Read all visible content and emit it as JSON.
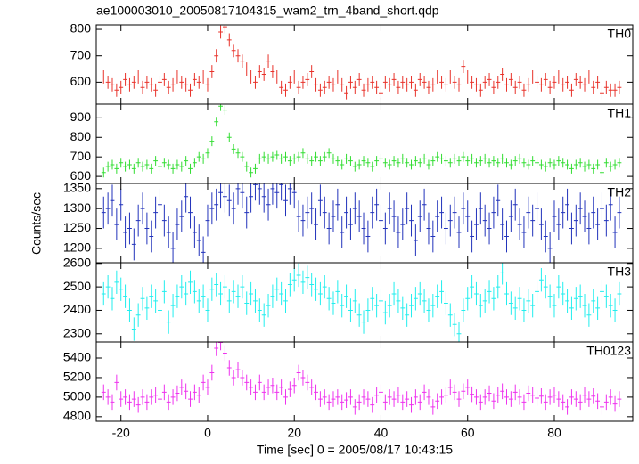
{
  "chart_data": {
    "type": "step",
    "title": "ae100003010_20050817104315_wam2_trn_4band_short.qdp",
    "xlabel": "Time [sec] 0 = 2005/08/17 10:43:15",
    "ylabel": "Counts/sec",
    "xlim": [
      -25.7,
      98.1
    ],
    "xticks": [
      -20,
      0,
      20,
      40,
      60,
      80
    ],
    "x": [
      -24,
      -23,
      -22,
      -21,
      -20,
      -19,
      -18,
      -17,
      -16,
      -15,
      -14,
      -13,
      -12,
      -11,
      -10,
      -9,
      -8,
      -7,
      -6,
      -5,
      -4,
      -3,
      -2,
      -1,
      0,
      1,
      2,
      3,
      4,
      5,
      6,
      7,
      8,
      9,
      10,
      11,
      12,
      13,
      14,
      15,
      16,
      17,
      18,
      19,
      20,
      21,
      22,
      23,
      24,
      25,
      26,
      27,
      28,
      29,
      30,
      31,
      32,
      33,
      34,
      35,
      36,
      37,
      38,
      39,
      40,
      41,
      42,
      43,
      44,
      45,
      46,
      47,
      48,
      49,
      50,
      51,
      52,
      53,
      54,
      55,
      56,
      57,
      58,
      59,
      60,
      61,
      62,
      63,
      64,
      65,
      66,
      67,
      68,
      69,
      70,
      71,
      72,
      73,
      74,
      75,
      76,
      77,
      78,
      79,
      80,
      81,
      82,
      83,
      84,
      85,
      86,
      87,
      88,
      89,
      90,
      91,
      92,
      93,
      94,
      95
    ],
    "series": [
      {
        "name": "TH0",
        "color": "#e8332b",
        "ylim": [
          517,
          817
        ],
        "yticks": [
          600,
          700,
          800
        ],
        "error": 25,
        "values": [
          620,
          600,
          590,
          570,
          580,
          610,
          590,
          600,
          620,
          580,
          600,
          590,
          570,
          600,
          610,
          580,
          590,
          620,
          600,
          590,
          570,
          610,
          600,
          620,
          590,
          640,
          700,
          790,
          810,
          760,
          720,
          700,
          680,
          650,
          620,
          600,
          640,
          630,
          680,
          640,
          620,
          580,
          570,
          600,
          620,
          580,
          600,
          610,
          640,
          590,
          570,
          580,
          600,
          590,
          620,
          590,
          560,
          600,
          580,
          610,
          570,
          590,
          600,
          580,
          560,
          600,
          590,
          610,
          580,
          600,
          590,
          600,
          570,
          610,
          600,
          580,
          590,
          620,
          600,
          590,
          620,
          600,
          590,
          660,
          620,
          600,
          590,
          570,
          600,
          610,
          580,
          600,
          630,
          590,
          610,
          580,
          600,
          570,
          590,
          620,
          600,
          590,
          610,
          580,
          600,
          620,
          590,
          600,
          570,
          610,
          600,
          590,
          620,
          580,
          600,
          560,
          580,
          570,
          570,
          580
        ]
      },
      {
        "name": "TH1",
        "color": "#33dd33",
        "ylim": [
          564,
          970
        ],
        "yticks": [
          600,
          700,
          800,
          900
        ],
        "error": 25,
        "values": [
          620,
          650,
          660,
          640,
          670,
          650,
          660,
          640,
          670,
          650,
          660,
          640,
          680,
          650,
          670,
          660,
          640,
          660,
          650,
          680,
          640,
          670,
          700,
          690,
          720,
          780,
          880,
          960,
          940,
          800,
          740,
          720,
          700,
          650,
          620,
          640,
          690,
          700,
          690,
          700,
          710,
          690,
          700,
          680,
          690,
          700,
          720,
          690,
          680,
          700,
          680,
          700,
          720,
          690,
          680,
          660,
          690,
          680,
          650,
          660,
          680,
          670,
          650,
          680,
          690,
          670,
          660,
          680,
          670,
          690,
          670,
          660,
          680,
          670,
          690,
          660,
          680,
          700,
          690,
          680,
          670,
          690,
          680,
          700,
          680,
          690,
          670,
          680,
          690,
          670,
          680,
          670,
          690,
          670,
          660,
          680,
          690,
          670,
          660,
          680,
          670,
          660,
          650,
          670,
          660,
          680,
          670,
          660,
          640,
          660,
          670,
          650,
          660,
          640,
          660,
          620,
          670,
          650,
          660,
          670
        ]
      },
      {
        "name": "TH2",
        "color": "#2233bb",
        "ylim": [
          1164,
          1363
        ],
        "yticks": [
          1200,
          1250,
          1300,
          1350
        ],
        "error": 40,
        "values": [
          1290,
          1300,
          1320,
          1260,
          1310,
          1240,
          1250,
          1210,
          1270,
          1300,
          1250,
          1230,
          1290,
          1310,
          1270,
          1240,
          1200,
          1260,
          1280,
          1330,
          1290,
          1240,
          1220,
          1190,
          1270,
          1300,
          1310,
          1340,
          1330,
          1320,
          1300,
          1350,
          1340,
          1290,
          1330,
          1360,
          1350,
          1330,
          1310,
          1350,
          1340,
          1360,
          1320,
          1350,
          1340,
          1280,
          1270,
          1290,
          1300,
          1260,
          1320,
          1290,
          1250,
          1280,
          1310,
          1240,
          1290,
          1260,
          1300,
          1280,
          1250,
          1230,
          1290,
          1310,
          1270,
          1250,
          1300,
          1280,
          1240,
          1260,
          1300,
          1270,
          1220,
          1280,
          1310,
          1250,
          1230,
          1280,
          1290,
          1250,
          1270,
          1290,
          1240,
          1300,
          1280,
          1230,
          1260,
          1300,
          1270,
          1250,
          1290,
          1320,
          1260,
          1230,
          1280,
          1310,
          1260,
          1240,
          1290,
          1270,
          1300,
          1260,
          1230,
          1200,
          1280,
          1260,
          1290,
          1310,
          1250,
          1270,
          1300,
          1280,
          1250,
          1290,
          1260,
          1300,
          1270,
          1310,
          1240,
          1290
        ]
      },
      {
        "name": "TH3",
        "color": "#22eeee",
        "ylim": [
          2265,
          2603
        ],
        "yticks": [
          2300,
          2400,
          2500,
          2600
        ],
        "error": 50,
        "values": [
          2470,
          2500,
          2450,
          2520,
          2490,
          2460,
          2400,
          2320,
          2380,
          2450,
          2410,
          2460,
          2440,
          2400,
          2480,
          2350,
          2420,
          2460,
          2500,
          2470,
          2520,
          2480,
          2440,
          2460,
          2400,
          2490,
          2510,
          2470,
          2500,
          2440,
          2480,
          2460,
          2500,
          2430,
          2470,
          2440,
          2400,
          2380,
          2420,
          2460,
          2490,
          2470,
          2440,
          2510,
          2530,
          2550,
          2520,
          2540,
          2510,
          2490,
          2470,
          2500,
          2450,
          2430,
          2480,
          2420,
          2460,
          2400,
          2440,
          2380,
          2350,
          2400,
          2450,
          2420,
          2440,
          2390,
          2420,
          2470,
          2440,
          2410,
          2380,
          2420,
          2450,
          2470,
          2440,
          2400,
          2420,
          2460,
          2480,
          2430,
          2380,
          2340,
          2300,
          2400,
          2450,
          2500,
          2470,
          2420,
          2440,
          2480,
          2450,
          2500,
          2560,
          2470,
          2430,
          2410,
          2450,
          2400,
          2440,
          2420,
          2480,
          2530,
          2500,
          2460,
          2420,
          2500,
          2470,
          2440,
          2410,
          2450,
          2460,
          2420,
          2380,
          2440,
          2410,
          2480,
          2460,
          2420,
          2400,
          2470
        ]
      },
      {
        "name": "TH0123",
        "color": "#ee33ee",
        "ylim": [
          4753,
          5564
        ],
        "yticks": [
          4800,
          5000,
          5200,
          5400
        ],
        "error": 80,
        "values": [
          5050,
          5000,
          4950,
          5150,
          4980,
          5000,
          4950,
          4980,
          4920,
          5000,
          4950,
          5000,
          5020,
          4980,
          5050,
          4950,
          5000,
          5040,
          5100,
          5060,
          4980,
          5050,
          5020,
          5150,
          5100,
          5250,
          5500,
          5560,
          5450,
          5300,
          5200,
          5280,
          5200,
          5150,
          5100,
          5050,
          5150,
          5050,
          5100,
          5120,
          5050,
          5100,
          5000,
          5080,
          5120,
          5250,
          5200,
          5150,
          5100,
          5050,
          4980,
          5000,
          4950,
          4980,
          5000,
          4950,
          4970,
          5000,
          4900,
          4950,
          5000,
          4980,
          4920,
          5020,
          5050,
          4950,
          5000,
          4980,
          5020,
          4950,
          4980,
          4920,
          5000,
          4950,
          5050,
          5000,
          4900,
          4960,
          5000,
          5020,
          5100,
          5050,
          4980,
          5060,
          5100,
          5030,
          5000,
          4950,
          5000,
          5040,
          4960,
          5020,
          5060,
          5000,
          4980,
          5050,
          5000,
          4950,
          5040,
          5020,
          4990,
          5010,
          4950,
          5000,
          5020,
          4980,
          4950,
          4900,
          5000,
          4980,
          4950,
          5020,
          4980,
          5010,
          4960,
          4900,
          4950,
          5000,
          4930,
          4980
        ]
      }
    ]
  }
}
